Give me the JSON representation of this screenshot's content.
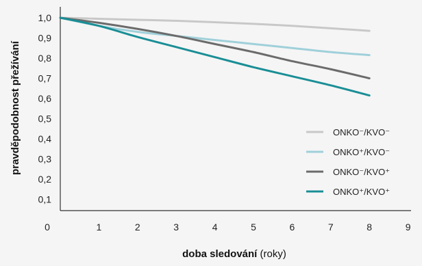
{
  "chart_data": {
    "type": "line",
    "xlabel_bold": "doba sledování",
    "xlabel_unit": "(roky)",
    "ylabel": "pravděpodobnost přežívání",
    "xlim": [
      0,
      9
    ],
    "ylim": [
      0.0,
      1.0
    ],
    "x_ticks": [
      "0",
      "1",
      "2",
      "3",
      "4",
      "5",
      "6",
      "7",
      "8",
      "9"
    ],
    "y_ticks": [
      "0,1",
      "0,2",
      "0,3",
      "0,4",
      "0,5",
      "0,6",
      "0,7",
      "0,8",
      "0,9",
      "1,0"
    ],
    "grid": false,
    "legend_position": "bottom-right",
    "series": [
      {
        "name": "ONKO⁻/KVO⁻",
        "color": "#c8c8c8",
        "x": [
          0,
          1,
          2,
          3,
          4,
          5,
          6,
          7,
          8
        ],
        "y": [
          1.0,
          0.995,
          0.99,
          0.985,
          0.978,
          0.97,
          0.96,
          0.948,
          0.935
        ]
      },
      {
        "name": "ONKO⁺/KVO⁻",
        "color": "#9fd0da",
        "x": [
          0,
          1,
          2,
          3,
          4,
          5,
          6,
          7,
          8
        ],
        "y": [
          1.0,
          0.96,
          0.93,
          0.91,
          0.89,
          0.87,
          0.85,
          0.83,
          0.815
        ]
      },
      {
        "name": "ONKO⁻/KVO⁺",
        "color": "#6b6b6b",
        "x": [
          0,
          1,
          2,
          3,
          4,
          5,
          6,
          7,
          8
        ],
        "y": [
          1.0,
          0.975,
          0.945,
          0.91,
          0.87,
          0.83,
          0.785,
          0.745,
          0.7
        ]
      },
      {
        "name": "ONKO⁺/KVO⁺",
        "color": "#1a8e96",
        "x": [
          0,
          1,
          2,
          3,
          4,
          5,
          6,
          7,
          8
        ],
        "y": [
          1.0,
          0.96,
          0.905,
          0.855,
          0.805,
          0.755,
          0.71,
          0.665,
          0.615
        ]
      }
    ]
  }
}
